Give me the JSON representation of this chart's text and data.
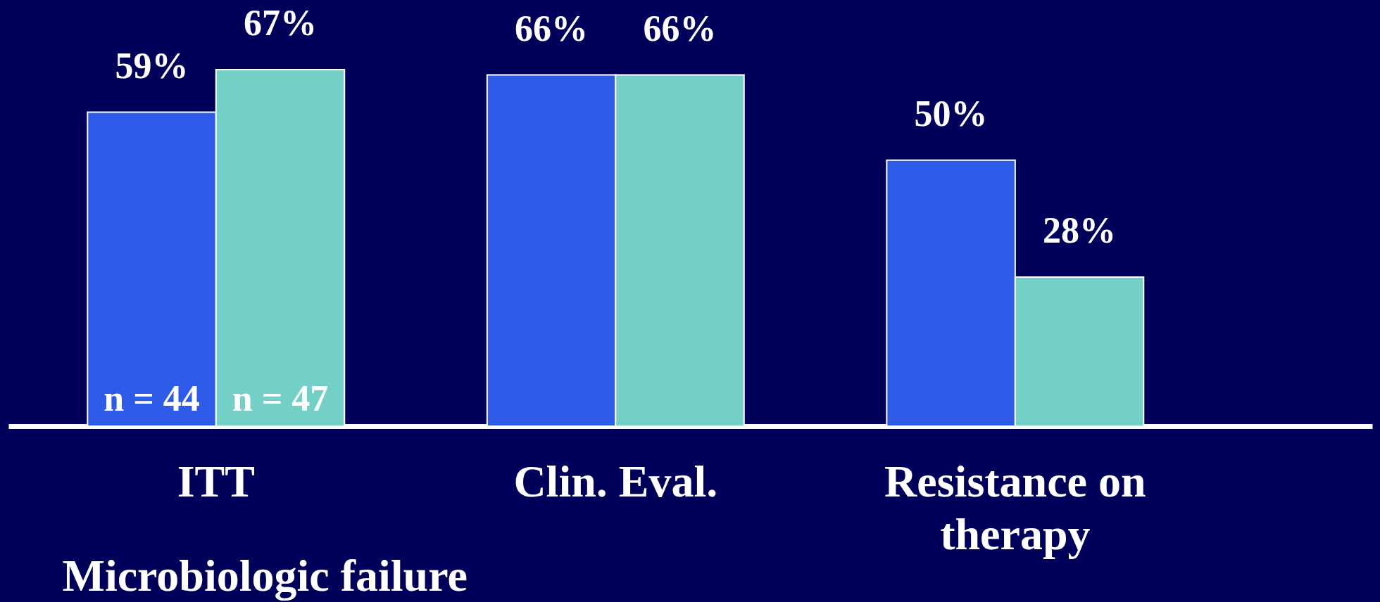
{
  "chart_data": {
    "type": "bar",
    "xlabel": "Microbiologic failure",
    "categories": [
      "ITT",
      "Clin. Eval.",
      "Resistance on therapy"
    ],
    "series": [
      {
        "color": "#2d5ae6",
        "values": [
          59,
          66,
          50
        ],
        "value_labels": [
          "59%",
          "66%",
          "50%"
        ]
      },
      {
        "color": "#74cfc6",
        "values": [
          67,
          66,
          28
        ],
        "value_labels": [
          "67%",
          "66%",
          "28%"
        ]
      }
    ],
    "annotations": [
      {
        "text": "n = 44",
        "x": "ITT",
        "y": 5
      },
      {
        "text": "n = 47",
        "x": "ITT",
        "y": 5
      }
    ],
    "tick_labels": "x"
  }
}
